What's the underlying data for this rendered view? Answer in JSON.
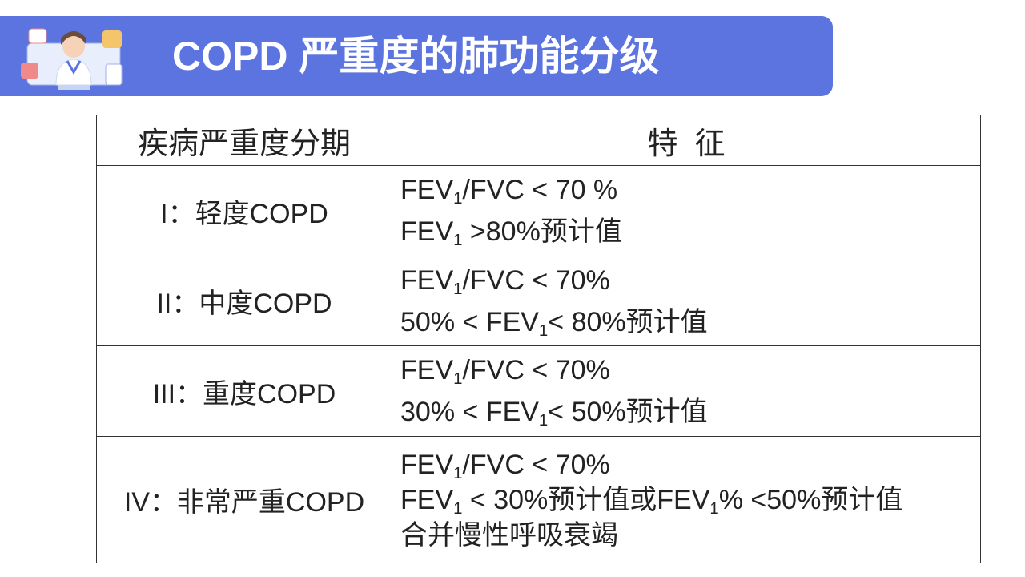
{
  "header": {
    "title": "COPD 严重度的肺功能分级"
  },
  "table": {
    "columns": [
      "疾病严重度分期",
      "特  征"
    ],
    "rows": [
      {
        "stage": "I：轻度COPD",
        "features": [
          [
            "FEV",
            "1",
            "/FVC < 70 %"
          ],
          [
            "FEV",
            "1",
            " >80%预计值"
          ]
        ]
      },
      {
        "stage": "II：中度COPD",
        "features": [
          [
            "FEV",
            "1",
            "/FVC < 70%"
          ],
          [
            "50% < FEV",
            "1",
            "< 80%预计值"
          ]
        ]
      },
      {
        "stage": "III：重度COPD",
        "features": [
          [
            "FEV",
            "1",
            "/FVC < 70%"
          ],
          [
            "30% < FEV",
            "1",
            "< 50%预计值"
          ]
        ]
      },
      {
        "stage": "IV：非常严重COPD",
        "features": [
          [
            "FEV",
            "1",
            "/FVC < 70%"
          ],
          [
            "FEV",
            "1",
            " < 30%预计值或FEV",
            "1",
            "% <50%预计值"
          ],
          [
            "合并慢性呼吸衰竭"
          ]
        ]
      }
    ]
  }
}
